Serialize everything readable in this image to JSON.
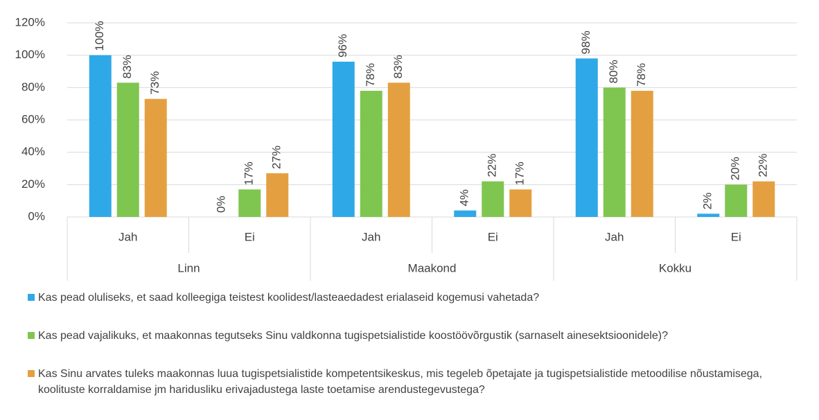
{
  "chart_data": {
    "type": "bar",
    "categories": [
      "Jah",
      "Ei",
      "Jah",
      "Ei",
      "Jah",
      "Ei"
    ],
    "groups": [
      "Linn",
      "Maakond",
      "Kokku"
    ],
    "series": [
      {
        "name": "Kas pead oluliseks, et saad kolleegiga teistest koolidest/lasteaedadest erialaseid kogemusi vahetada?",
        "color": "#2fa8e8",
        "values": [
          100,
          0,
          96,
          4,
          98,
          2
        ],
        "value_labels": [
          "100%",
          "0%",
          "96%",
          "4%",
          "98%",
          "2%"
        ]
      },
      {
        "name": "Kas pead vajalikuks, et maakonnas tegutseks Sinu valdkonna tugispetsialistide koostöövõrgustik (sarnaselt ainesektsioonidele)?",
        "color": "#7fc650",
        "values": [
          83,
          17,
          78,
          22,
          80,
          20
        ],
        "value_labels": [
          "83%",
          "17%",
          "78%",
          "22%",
          "80%",
          "20%"
        ]
      },
      {
        "name": "Kas Sinu arvates tuleks maakonnas luua tugispetsialistide kompetentsikeskus, mis tegeleb õpetajate ja tugispetsialistide metoodilise nõustamisega, koolituste korraldamise jm haridusliku erivajadustega laste toetamise arendustegevustega?",
        "color": "#e4a040",
        "values": [
          73,
          27,
          83,
          17,
          78,
          22
        ],
        "value_labels": [
          "73%",
          "27%",
          "83%",
          "17%",
          "78%",
          "22%"
        ]
      }
    ],
    "ylim": [
      0,
      120
    ],
    "yticks": [
      {
        "value": 0,
        "label": "0%"
      },
      {
        "value": 20,
        "label": "20%"
      },
      {
        "value": 40,
        "label": "40%"
      },
      {
        "value": 60,
        "label": "60%"
      },
      {
        "value": 80,
        "label": "80%"
      },
      {
        "value": 100,
        "label": "100%"
      },
      {
        "value": 120,
        "label": "120%"
      }
    ],
    "grid": true
  }
}
